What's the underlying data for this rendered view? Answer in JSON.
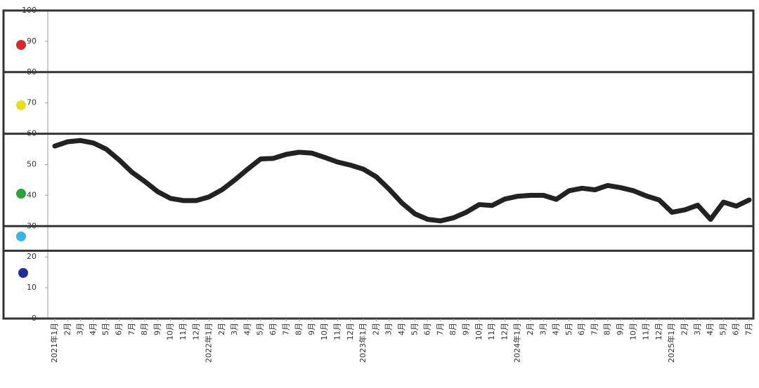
{
  "chart_data": {
    "type": "line",
    "categories": [
      "2021年1月",
      "2月",
      "3月",
      "4月",
      "5月",
      "6月",
      "7月",
      "8月",
      "9月",
      "10月",
      "11月",
      "12月",
      "2022年1月",
      "2月",
      "3月",
      "4月",
      "5月",
      "6月",
      "7月",
      "8月",
      "9月",
      "10月",
      "11月",
      "12月",
      "2023年1月",
      "2月",
      "3月",
      "4月",
      "5月",
      "6月",
      "7月",
      "8月",
      "9月",
      "10月",
      "11月",
      "12月",
      "2024年1月",
      "2月",
      "3月",
      "4月",
      "5月",
      "6月",
      "7月",
      "8月",
      "9月",
      "10月",
      "11月",
      "12月",
      "2025年1月",
      "2月",
      "3月",
      "4月",
      "5月",
      "6月",
      "7月"
    ],
    "series": [
      {
        "color": "#222222",
        "values": [
          56,
          57.4,
          57.8,
          57,
          55,
          51.5,
          47.5,
          44.5,
          41.2,
          39,
          38.3,
          38.3,
          39.5,
          41.8,
          45,
          48.5,
          51.8,
          52,
          53.3,
          54,
          53.7,
          52.3,
          50.8,
          49.8,
          48.5,
          46,
          42,
          37.5,
          34,
          32.2,
          31.7,
          32.7,
          34.5,
          37,
          36.7,
          38.8,
          39.7,
          40,
          40,
          38.7,
          41.5,
          42.3,
          41.8,
          43.2,
          42.5,
          41.5,
          39.8,
          38.5,
          34.5,
          35.3,
          36.8,
          32.2,
          37.8,
          36.5,
          38.5
        ]
      }
    ],
    "ylim": [
      0,
      100
    ],
    "yticks": [
      0,
      10,
      20,
      30,
      40,
      50,
      60,
      70,
      80,
      90,
      100
    ],
    "zone_lines": [
      80,
      60,
      30,
      22
    ]
  }
}
